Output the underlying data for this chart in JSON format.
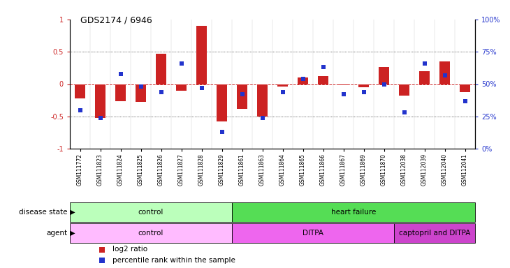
{
  "title": "GDS2174 / 6946",
  "samples": [
    "GSM111772",
    "GSM111823",
    "GSM111824",
    "GSM111825",
    "GSM111826",
    "GSM111827",
    "GSM111828",
    "GSM111829",
    "GSM111861",
    "GSM111863",
    "GSM111864",
    "GSM111865",
    "GSM111866",
    "GSM111867",
    "GSM111869",
    "GSM111870",
    "GSM112038",
    "GSM112039",
    "GSM112040",
    "GSM112041"
  ],
  "log2_ratio": [
    -0.22,
    -0.52,
    -0.27,
    -0.28,
    0.47,
    -0.1,
    0.9,
    -0.58,
    -0.38,
    -0.5,
    -0.04,
    0.1,
    0.12,
    -0.02,
    -0.05,
    0.27,
    -0.18,
    0.2,
    0.35,
    -0.12
  ],
  "percentile": [
    0.3,
    0.24,
    0.58,
    0.48,
    0.44,
    0.66,
    0.47,
    0.13,
    0.42,
    0.24,
    0.44,
    0.54,
    0.63,
    0.42,
    0.44,
    0.5,
    0.28,
    0.66,
    0.57,
    0.37
  ],
  "bar_color": "#cc2222",
  "dot_color": "#2233cc",
  "disease_state": [
    {
      "label": "control",
      "start": 0,
      "end": 8,
      "color": "#bbffbb"
    },
    {
      "label": "heart failure",
      "start": 8,
      "end": 20,
      "color": "#55dd55"
    }
  ],
  "agent": [
    {
      "label": "control",
      "start": 0,
      "end": 8,
      "color": "#ffbbff"
    },
    {
      "label": "DITPA",
      "start": 8,
      "end": 16,
      "color": "#ee66ee"
    },
    {
      "label": "captopril and DITPA",
      "start": 16,
      "end": 20,
      "color": "#cc44cc"
    }
  ],
  "ylim_left": [
    -1,
    1
  ],
  "yticks_left": [
    -1,
    -0.5,
    0,
    0.5,
    1
  ],
  "ytick_labels_left": [
    "-1",
    "-0.5",
    "0",
    "0.5",
    "1"
  ],
  "yticks_right": [
    -1,
    -0.5,
    0,
    0.5,
    1
  ],
  "ytick_labels_right": [
    "0%",
    "25%",
    "50%",
    "75%",
    "100%"
  ],
  "bg_color": "#ffffff",
  "n_samples": 20
}
